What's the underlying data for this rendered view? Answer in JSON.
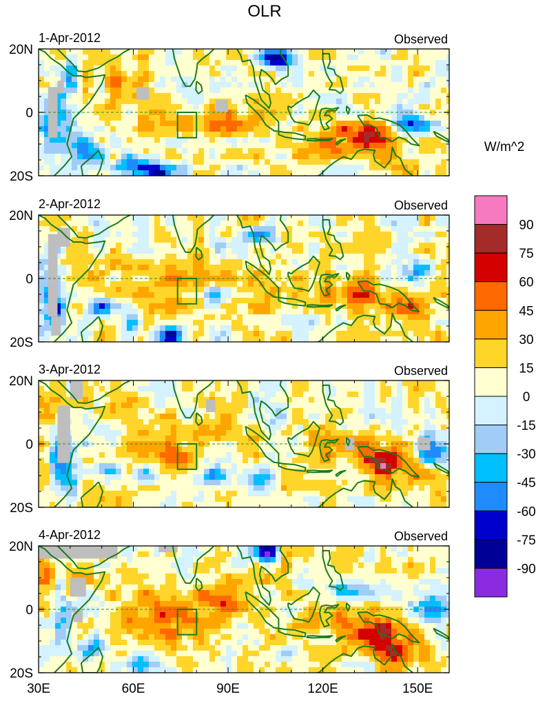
{
  "chart_data": {
    "type": "heatmap",
    "title": "OLR",
    "colorbar": {
      "unit_label": "W/m^2",
      "tick_labels": [
        "90",
        "75",
        "60",
        "45",
        "30",
        "15",
        "0",
        "-15",
        "-30",
        "-45",
        "-60",
        "-75",
        "-90"
      ],
      "colors_top_to_bottom": [
        "#f77ac0",
        "#a52a2a",
        "#d40000",
        "#ff6a00",
        "#ffa500",
        "#ffd52a",
        "#ffffd0",
        "#d4f2ff",
        "#a0ccf7",
        "#00bfff",
        "#1e8cff",
        "#0000cc",
        "#000096",
        "#8a2be2"
      ]
    },
    "missing_color": "#bebebe",
    "land_outline_color": "#1a7a1a",
    "x_axis": {
      "range": [
        30,
        160
      ],
      "tick_values": [
        30,
        60,
        90,
        120,
        150
      ],
      "tick_labels": [
        "30E",
        "60E",
        "90E",
        "120E",
        "150E"
      ]
    },
    "y_axis": {
      "range": [
        -20,
        20
      ],
      "tick_values": [
        20,
        0,
        -20
      ],
      "tick_labels": [
        "20N",
        "0",
        "20S"
      ]
    },
    "region_box": {
      "lon": [
        74,
        80
      ],
      "lat": [
        -8,
        0
      ]
    },
    "panels": [
      {
        "date": "1-Apr-2012",
        "label": "Observed"
      },
      {
        "date": "2-Apr-2012",
        "label": "Observed"
      },
      {
        "date": "3-Apr-2012",
        "label": "Observed"
      },
      {
        "date": "4-Apr-2012",
        "label": "Observed"
      }
    ]
  }
}
